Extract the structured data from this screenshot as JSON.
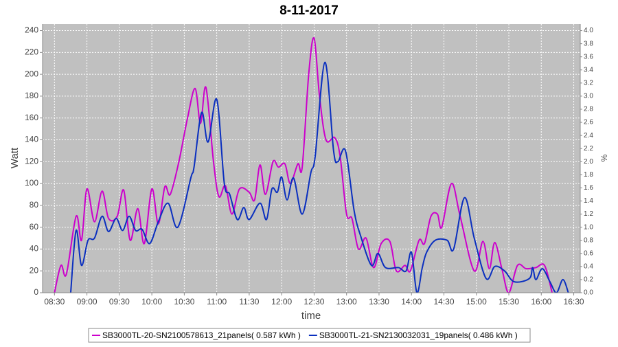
{
  "chart_data": {
    "type": "line",
    "title": "8-11-2017",
    "xlabel": "time",
    "ylabel": "Watt",
    "y2label": "%",
    "xlim": [
      "08:19",
      "16:36"
    ],
    "xticks": [
      "08:30",
      "09:00",
      "09:30",
      "10:00",
      "10:30",
      "11:00",
      "11:30",
      "12:00",
      "12:30",
      "13:00",
      "13:30",
      "14:00",
      "14:30",
      "15:00",
      "15:30",
      "16:00",
      "16:30"
    ],
    "ylim": [
      0,
      246
    ],
    "yticks": [
      0,
      20,
      40,
      60,
      80,
      100,
      120,
      140,
      160,
      180,
      200,
      220,
      240
    ],
    "y2lim": [
      0,
      4.1
    ],
    "y2ticks": [
      {
        "value": 0,
        "label": "0.0"
      },
      0.2,
      0.4,
      0.6,
      0.8,
      {
        "value": 1,
        "label": "1.0"
      },
      1.2,
      1.4,
      1.6,
      1.8,
      {
        "value": 2,
        "label": "2.0"
      },
      2.2,
      2.4,
      2.6,
      2.8,
      {
        "value": 3,
        "label": "3.0"
      },
      3.2,
      3.4,
      3.6,
      3.8,
      {
        "value": 4,
        "label": "4.0"
      }
    ],
    "grid": true,
    "legend": "bottom",
    "series": [
      {
        "name": "SB3000TL-20-SN2100578613_21panels( 0.587 kWh )",
        "color": "#cc00cc",
        "x": [
          "08:30",
          "08:36",
          "08:41",
          "08:50",
          "08:55",
          "09:00",
          "09:07",
          "09:14",
          "09:20",
          "09:28",
          "09:34",
          "09:40",
          "09:47",
          "09:53",
          "10:00",
          "10:06",
          "10:12",
          "10:17",
          "10:25",
          "10:33",
          "10:40",
          "10:45",
          "10:50",
          "10:57",
          "11:02",
          "11:08",
          "11:14",
          "11:21",
          "11:30",
          "11:35",
          "11:40",
          "11:45",
          "11:52",
          "11:57",
          "12:03",
          "12:08",
          "12:15",
          "12:19",
          "12:25",
          "12:30",
          "12:35",
          "12:41",
          "12:49",
          "12:54",
          "13:00",
          "13:05",
          "13:11",
          "13:18",
          "13:25",
          "13:32",
          "13:40",
          "13:46",
          "13:54",
          "13:59",
          "14:07",
          "14:12",
          "14:18",
          "14:24",
          "14:28",
          "14:37",
          "14:45",
          "14:58",
          "15:06",
          "15:12",
          "15:17",
          "15:24",
          "15:30",
          "15:38",
          "15:46",
          "15:55",
          "16:03",
          "16:10"
        ],
        "values": [
          0,
          25,
          17,
          70,
          48,
          95,
          65,
          93,
          68,
          70,
          94,
          48,
          77,
          45,
          95,
          63,
          97,
          90,
          120,
          160,
          187,
          155,
          188,
          120,
          88,
          98,
          72,
          95,
          92,
          85,
          117,
          90,
          120,
          115,
          118,
          100,
          118,
          115,
          200,
          233,
          180,
          140,
          142,
          125,
          72,
          68,
          40,
          50,
          23,
          45,
          47,
          20,
          25,
          20,
          48,
          45,
          70,
          72,
          60,
          100,
          70,
          20,
          47,
          22,
          46,
          20,
          0,
          25,
          22,
          23,
          25,
          0
        ]
      },
      {
        "name": "SB3000TL-21-SN2130032031_19panels( 0.486 kWh )",
        "color": "#0a2fbf",
        "x": [
          "08:45",
          "08:50",
          "08:55",
          "09:01",
          "09:07",
          "09:14",
          "09:20",
          "09:27",
          "09:33",
          "09:39",
          "09:45",
          "09:51",
          "09:58",
          "10:06",
          "10:15",
          "10:24",
          "10:36",
          "10:39",
          "10:46",
          "10:52",
          "11:00",
          "11:07",
          "11:12",
          "11:19",
          "11:25",
          "11:30",
          "11:40",
          "11:46",
          "11:51",
          "11:56",
          "12:00",
          "12:05",
          "12:11",
          "12:19",
          "12:27",
          "12:31",
          "12:40",
          "12:48",
          "12:52",
          "12:59",
          "13:07",
          "13:13",
          "13:23",
          "13:29",
          "13:36",
          "13:48",
          "13:55",
          "14:00",
          "14:05",
          "14:10",
          "14:14",
          "14:22",
          "14:33",
          "14:39",
          "14:49",
          "14:58",
          "15:09",
          "15:17",
          "15:26",
          "15:35",
          "15:49",
          "15:52",
          "15:55",
          "16:01",
          "16:08",
          "16:14",
          "16:20",
          "16:25"
        ],
        "values": [
          0,
          57,
          25,
          48,
          50,
          70,
          56,
          68,
          57,
          70,
          57,
          58,
          45,
          65,
          82,
          60,
          105,
          115,
          165,
          138,
          177,
          100,
          90,
          67,
          78,
          67,
          82,
          67,
          95,
          92,
          106,
          85,
          105,
          72,
          110,
          125,
          211,
          130,
          120,
          130,
          75,
          52,
          25,
          36,
          23,
          23,
          20,
          37,
          0,
          23,
          37,
          48,
          48,
          40,
          87,
          50,
          13,
          24,
          20,
          10,
          13,
          23,
          12,
          22,
          10,
          0,
          12,
          0
        ]
      }
    ]
  }
}
